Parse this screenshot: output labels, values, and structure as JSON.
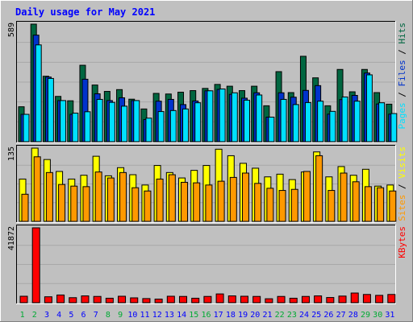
{
  "chart_data": {
    "type": "bar",
    "title": "Daily usage for May 2021",
    "categories": [
      "1",
      "2",
      "3",
      "4",
      "5",
      "6",
      "7",
      "8",
      "9",
      "10",
      "11",
      "12",
      "13",
      "14",
      "15",
      "16",
      "17",
      "18",
      "19",
      "20",
      "21",
      "22",
      "23",
      "24",
      "25",
      "26",
      "27",
      "28",
      "29",
      "30",
      "31"
    ],
    "weekend_days": [
      "1",
      "2",
      "8",
      "9",
      "15",
      "16",
      "22",
      "23",
      "29",
      "30"
    ],
    "panels": [
      {
        "id": "hits",
        "axis_max": 589,
        "max_label": "589",
        "labels": [
          "Pages",
          "Files",
          "Hits"
        ],
        "series": [
          {
            "name": "Hits",
            "color": "#006640",
            "values": [
              175,
              589,
              328,
              227,
              205,
              383,
              284,
              252,
              261,
              213,
              164,
              242,
              239,
              248,
              256,
              267,
              287,
              278,
              256,
              278,
              180,
              351,
              246,
              428,
              320,
              180,
              362,
              250,
              362,
              246,
              188
            ]
          },
          {
            "name": "Files",
            "color": "#0033cc",
            "values": [
              137,
              534,
              324,
              206,
              137,
              313,
              240,
              206,
              220,
              206,
              111,
              203,
              212,
              186,
              204,
              255,
              262,
              237,
              218,
              245,
              123,
              245,
              223,
              257,
              281,
              138,
              211,
              232,
              344,
              189,
              138
            ]
          },
          {
            "name": "Pages",
            "color": "#00e0ff",
            "values": [
              137,
              485,
              317,
              206,
              143,
              150,
              212,
              197,
              178,
              206,
              118,
              151,
              156,
              164,
              195,
              255,
              264,
              245,
              208,
              234,
              123,
              212,
              186,
              196,
              203,
              152,
              224,
              203,
              335,
              195,
              141
            ]
          }
        ]
      },
      {
        "id": "visits",
        "axis_max": 135,
        "max_label": "135",
        "labels": [
          "Sites",
          "Visits"
        ],
        "series": [
          {
            "name": "Visits",
            "color": "#ffff00",
            "values": [
              78,
              135,
              114,
              92,
              78,
              85,
              120,
              84,
              99,
              86,
              67,
              103,
              90,
              80,
              94,
              103,
              133,
              121,
              107,
              98,
              82,
              87,
              77,
              91,
              128,
              82,
              101,
              85,
              96,
              65,
              67
            ]
          },
          {
            "name": "Sites",
            "color": "#ff9900",
            "values": [
              50,
              119,
              90,
              68,
              65,
              64,
              91,
              80,
              90,
              62,
              56,
              78,
              86,
              72,
              71,
              67,
              74,
              81,
              89,
              70,
              61,
              57,
              59,
              92,
              121,
              57,
              89,
              73,
              64,
              62,
              56
            ]
          }
        ]
      },
      {
        "id": "kbytes",
        "axis_max": 41872,
        "max_label": "41872",
        "labels": [
          "KBytes"
        ],
        "series": [
          {
            "name": "KBytes",
            "color": "#ff0000",
            "values": [
              3600,
              41872,
              3300,
              4300,
              2800,
              3800,
              3500,
              2500,
              3600,
              2700,
              2300,
              2000,
              3600,
              3500,
              2500,
              3500,
              4900,
              3800,
              3600,
              3500,
              2200,
              3500,
              2500,
              3500,
              3800,
              2900,
              3700,
              5400,
              4600,
              4100,
              4600
            ]
          }
        ]
      }
    ],
    "colors": {
      "background": "#c0c0c0",
      "plot": "#c0c0c0",
      "title": "#0000ff",
      "weekday_label": "#0000ff",
      "weekend_label": "#00aa33",
      "grid": "#a8a8a8"
    }
  }
}
